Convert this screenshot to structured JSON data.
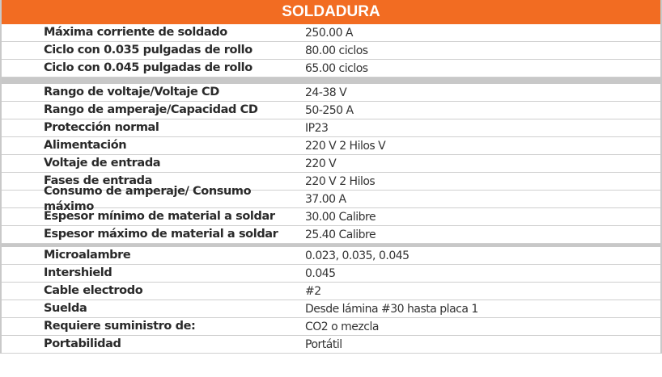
{
  "title": "SOLDADURA",
  "groups": [
    [
      {
        "label": "Máxima corriente de soldado",
        "value": "250.00 A"
      },
      {
        "label": "Ciclo con 0.035 pulgadas de rollo",
        "value": "80.00 ciclos"
      },
      {
        "label": "Ciclo con 0.045 pulgadas de rollo",
        "value": "65.00 ciclos"
      }
    ],
    [
      {
        "label": "Rango de voltaje/Voltaje CD",
        "value": "24-38 V"
      },
      {
        "label": "Rango de amperaje/Capacidad CD",
        "value": "50-250 A"
      },
      {
        "label": "Protección normal",
        "value": "IP23"
      },
      {
        "label": "Alimentación",
        "value": "220 V 2 Hilos V"
      },
      {
        "label": "Voltaje de entrada",
        "value": "220 V"
      },
      {
        "label": "Fases de entrada",
        "value": "220 V 2 Hilos"
      },
      {
        "label": "Consumo de amperaje/ Consumo máximo",
        "value": "37.00 A"
      },
      {
        "label": "Espesor mínimo de material a soldar",
        "value": "30.00 Calibre"
      },
      {
        "label": "Espesor máximo de material a soldar",
        "value": "25.40 Calibre"
      }
    ],
    [
      {
        "label": "Microalambre",
        "value": "0.023, 0.035, 0.045"
      },
      {
        "label": "Intershield",
        "value": "0.045"
      },
      {
        "label": "Cable electrodo",
        "value": "#2"
      },
      {
        "label": "Suelda",
        "value": "Desde lámina #30 hasta placa 1"
      },
      {
        "label": "Requiere suministro de:",
        "value": "CO2 o mezcla"
      },
      {
        "label": "Portabilidad",
        "value": "Portátil"
      }
    ]
  ],
  "colors": {
    "header": "#f26c22",
    "separator": "#c8c8c8"
  }
}
